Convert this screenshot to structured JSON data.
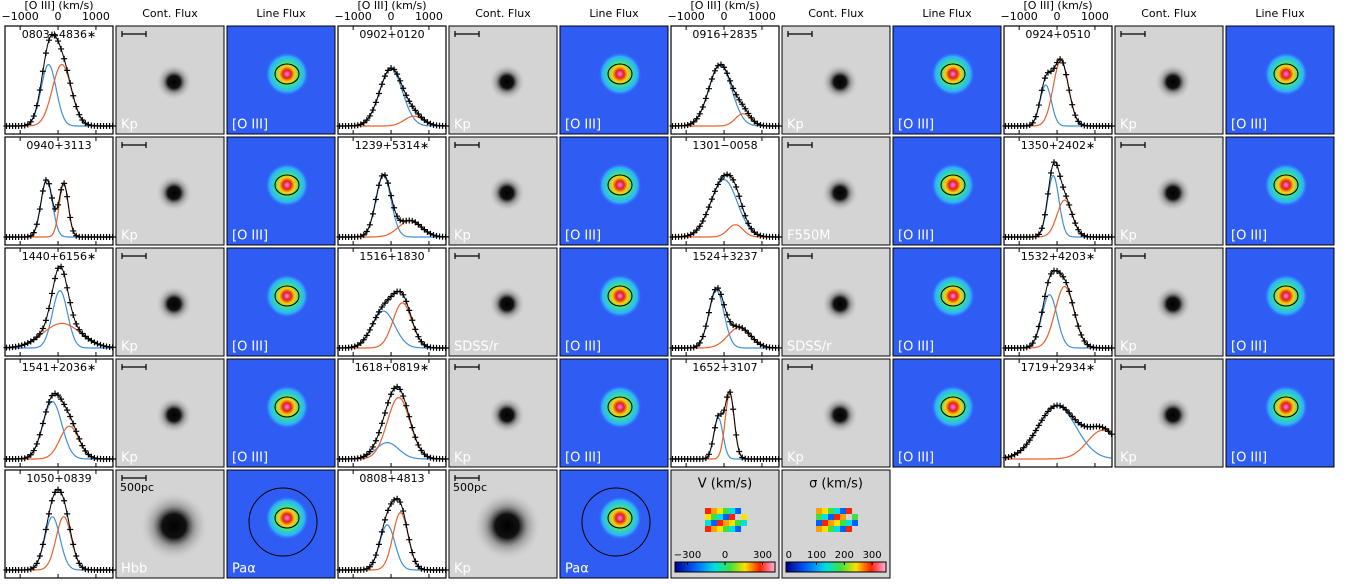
{
  "header": {
    "spectrum_axis_label": "[O III] (km/s)",
    "spectrum_xlim": [
      -1400,
      1450
    ],
    "spectrum_xticks": [
      {
        "value": -1000,
        "label": "−1000"
      },
      0,
      1000
    ],
    "cont_title": "Cont. Flux",
    "line_title": "Line Flux",
    "blue_color": "#3f8fd8",
    "red_color": "#e8602c"
  },
  "objects": [
    {
      "name": "0803+4836∗",
      "cont_label": "Kp",
      "line_label": "[O III]",
      "components": [
        [
          -250,
          200,
          0.75
        ],
        [
          100,
          250,
          0.75
        ]
      ]
    },
    {
      "name": "0902+0120",
      "cont_label": "Kp",
      "line_label": "[O III]",
      "components": [
        [
          0,
          300,
          0.7
        ],
        [
          600,
          250,
          0.12
        ]
      ]
    },
    {
      "name": "0916+2835",
      "cont_label": "Kp",
      "line_label": "[O III]",
      "components": [
        [
          -100,
          300,
          0.75
        ],
        [
          500,
          200,
          0.15
        ]
      ]
    },
    {
      "name": "0924+0510",
      "cont_label": "Kp",
      "line_label": "[O III]",
      "components": [
        [
          -300,
          150,
          0.5
        ],
        [
          100,
          200,
          0.8
        ]
      ]
    },
    {
      "name": "0940+3113",
      "cont_label": "Kp",
      "line_label": "[O III]",
      "components": [
        [
          -300,
          150,
          0.7
        ],
        [
          150,
          120,
          0.65
        ]
      ]
    },
    {
      "name": "1239+5314∗",
      "cont_label": "Kp",
      "line_label": "[O III]",
      "components": [
        [
          -200,
          200,
          0.75
        ],
        [
          500,
          300,
          0.2
        ]
      ]
    },
    {
      "name": "1301−0058",
      "cont_label": "F550M",
      "line_label": "[O III]",
      "components": [
        [
          0,
          350,
          0.7
        ],
        [
          300,
          200,
          0.15
        ]
      ]
    },
    {
      "name": "1350+2402∗",
      "cont_label": "Kp",
      "line_label": "[O III]",
      "components": [
        [
          -100,
          150,
          0.75
        ],
        [
          200,
          200,
          0.45
        ]
      ]
    },
    {
      "name": "1440+6156∗",
      "cont_label": "Kp",
      "line_label": "[O III]",
      "components": [
        [
          50,
          200,
          0.7
        ],
        [
          100,
          500,
          0.3
        ]
      ]
    },
    {
      "name": "1516+1830",
      "cont_label": "SDSS/r",
      "line_label": "[O III]",
      "components": [
        [
          -200,
          300,
          0.45
        ],
        [
          300,
          250,
          0.55
        ]
      ]
    },
    {
      "name": "1524+3237",
      "cont_label": "SDSS/r",
      "line_label": "[O III]",
      "components": [
        [
          -200,
          200,
          0.7
        ],
        [
          400,
          300,
          0.25
        ]
      ]
    },
    {
      "name": "1532+4203∗",
      "cont_label": "Kp",
      "line_label": "[O III]",
      "components": [
        [
          -200,
          200,
          0.65
        ],
        [
          200,
          250,
          0.75
        ]
      ]
    },
    {
      "name": "1541+2036∗",
      "cont_label": "Kp",
      "line_label": "[O III]",
      "components": [
        [
          -150,
          250,
          0.7
        ],
        [
          300,
          250,
          0.4
        ]
      ]
    },
    {
      "name": "1618+0819∗",
      "cont_label": "Kp",
      "line_label": "[O III]",
      "components": [
        [
          -100,
          300,
          0.2
        ],
        [
          200,
          300,
          0.75
        ]
      ]
    },
    {
      "name": "1652+3107",
      "cont_label": "Kp",
      "line_label": "[O III]",
      "components": [
        [
          -150,
          120,
          0.5
        ],
        [
          150,
          120,
          0.8
        ]
      ]
    },
    {
      "name": "1719+2934∗",
      "cont_label": "Kp",
      "line_label": "[O III]",
      "components": [
        [
          0,
          500,
          0.65
        ],
        [
          1200,
          400,
          0.35
        ]
      ]
    },
    {
      "name": "1050+0839",
      "cont_label": "Hbb",
      "line_label": "Paα",
      "scale_label": "500pc",
      "components": [
        [
          -150,
          200,
          0.65
        ],
        [
          150,
          200,
          0.65
        ]
      ]
    },
    {
      "name": "0808+4813",
      "cont_label": "Kp",
      "line_label": "Paα",
      "scale_label": "500pc",
      "components": [
        [
          -100,
          200,
          0.55
        ],
        [
          250,
          200,
          0.7
        ]
      ]
    }
  ],
  "maps": [
    {
      "title": "V (km/s)",
      "clim": [
        -400,
        400
      ],
      "ticks": [
        {
          "value": -300,
          "label": "−300"
        },
        0,
        300
      ]
    },
    {
      "title": "σ (km/s)",
      "clim": [
        -10,
        350
      ],
      "ticks": [
        0,
        100,
        200,
        300
      ]
    }
  ]
}
